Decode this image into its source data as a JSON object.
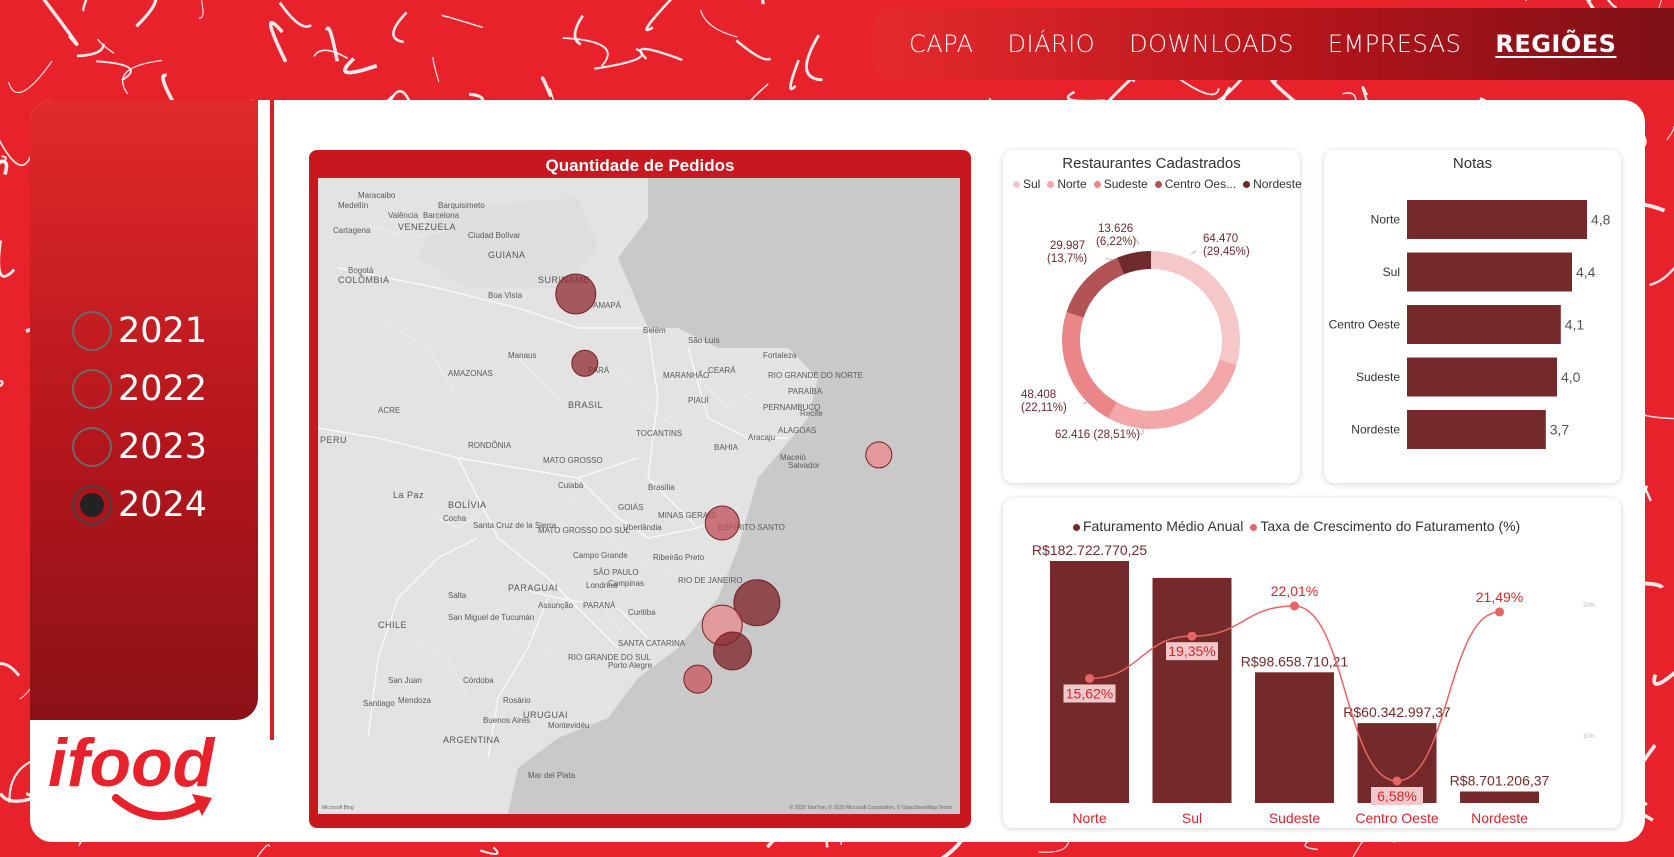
{
  "nav": {
    "items": [
      {
        "label": "CAPA",
        "active": false
      },
      {
        "label": "DIÁRIO",
        "active": false
      },
      {
        "label": "DOWNLOADS",
        "active": false
      },
      {
        "label": "EMPRESAS",
        "active": false
      },
      {
        "label": "REGIÕES",
        "active": true
      }
    ]
  },
  "years": [
    {
      "label": "2021",
      "checked": false
    },
    {
      "label": "2022",
      "checked": false
    },
    {
      "label": "2023",
      "checked": false
    },
    {
      "label": "2024",
      "checked": true
    }
  ],
  "logo": {
    "text": "ifood",
    "icon": "ifood-logo-icon"
  },
  "map": {
    "title": "Quantidade de Pedidos",
    "labels": [
      "VENEZUELA",
      "COLÔMBIA",
      "GUIANA",
      "SURINAME",
      "AMAPÁ",
      "Belém",
      "São Luís",
      "Fortaleza",
      "AMAZONAS",
      "PARÁ",
      "MARANHÃO",
      "CEARÁ",
      "RIO GRANDE DO NORTE",
      "PARAÍBA",
      "PERNAMBUCO",
      "Recife",
      "ALAGOAS",
      "PIAUÍ",
      "BRASIL",
      "ACRE",
      "RONDÔNIA",
      "TOCANTINS",
      "BAHIA",
      "Salvador",
      "MATO GROSSO",
      "Cuiabá",
      "Brasília",
      "GOIÁS",
      "MINAS GERAIS",
      "ESPÍRITO SANTO",
      "BOLÍVIA",
      "La Paz",
      "Cocha",
      "Santa Cruz de la Sierra",
      "MATO GROSSO DO SUL",
      "Campo Grande",
      "Uberlândia",
      "Ribeirão Preto",
      "SÃO PAULO",
      "RIO DE JANEIRO",
      "Campinas",
      "PARAGUAI",
      "Assunção",
      "PARANÁ",
      "Londrina",
      "Curitiba",
      "SANTA CATARINA",
      "RIO GRANDE DO SUL",
      "Porto Alegre",
      "Salta",
      "San Miguel de Tucumán",
      "CHILE",
      "Córdoba",
      "Rosário",
      "San Juan",
      "Mendoza",
      "Santiago",
      "URUGUAI",
      "Buenos Aires",
      "Montevidéu",
      "ARGENTINA",
      "PERU",
      "Manaus",
      "Boa Vista",
      "Bogotá",
      "Medellín",
      "Cartagena",
      "Barquisimeto",
      "Maracaibo",
      "Valência",
      "Barcelona",
      "Ciudad Bolívar",
      "Mar del Plata",
      "Aracaju",
      "Maceió"
    ],
    "footer": "© 2025 TomTom, © 2025 Microsoft Corporation, © OpenStreetMap  Terms",
    "bing": "Microsoft Bing"
  },
  "restaurantes": {
    "title": "Restaurantes Cadastrados",
    "legend": [
      "Sul",
      "Norte",
      "Sudeste",
      "Centro Oes...",
      "Nordeste"
    ],
    "labels": [
      {
        "line1": "64.470",
        "line2": "(29,45%)"
      },
      {
        "line1": "62.416 (28,51%)",
        "line2": ""
      },
      {
        "line1": "48.408",
        "line2": "(22,11%)"
      },
      {
        "line1": "29.987",
        "line2": "(13,7%)"
      },
      {
        "line1": "13.626",
        "line2": "(6,22%)"
      }
    ]
  },
  "notas": {
    "title": "Notas",
    "labels": [
      "Norte",
      "Sul",
      "Centro Oeste",
      "Sudeste",
      "Nordeste"
    ],
    "value_labels": [
      "4,8",
      "4,4",
      "4,1",
      "4,0",
      "3,7"
    ]
  },
  "faturamento": {
    "legend": [
      "Faturamento Médio Anual",
      "Taxa de Crescimento do Faturamento (%)"
    ],
    "bar_labels": [
      "R$182.722.770,25",
      "",
      "R$98.658.710,21",
      "R$60.342.997,37",
      "R$8.701.206,37"
    ],
    "rate_labels": [
      "15,62%",
      "19,35%",
      "22,01%",
      "6,58%",
      "21,49%"
    ],
    "categories": [
      "Norte",
      "Sul",
      "Sudeste",
      "Centro Oeste",
      "Nordeste"
    ],
    "axis_ticks": [
      "20%",
      "10%"
    ]
  },
  "colors": {
    "brand": "#e8222b",
    "dark_bar": "#742a2a",
    "line": "#e86465",
    "text_red": "#d6262d"
  },
  "chart_data": [
    {
      "type": "pie",
      "title": "Restaurantes Cadastrados",
      "categories": [
        "Sul",
        "Norte",
        "Sudeste",
        "Centro Oeste",
        "Nordeste"
      ],
      "values": [
        64470,
        62416,
        48408,
        29987,
        13626
      ],
      "percents": [
        29.45,
        28.51,
        22.11,
        13.7,
        6.22
      ],
      "colors": [
        "#f6c7c8",
        "#f3a7a8",
        "#ea8688",
        "#b25456",
        "#6e2a2c"
      ],
      "legend": "top"
    },
    {
      "type": "bar",
      "title": "Notas",
      "orientation": "horizontal",
      "categories": [
        "Norte",
        "Sul",
        "Centro Oeste",
        "Sudeste",
        "Nordeste"
      ],
      "values": [
        4.8,
        4.4,
        4.1,
        4.0,
        3.7
      ],
      "xlim": [
        0,
        5
      ]
    },
    {
      "type": "bar",
      "title": "",
      "categories": [
        "Norte",
        "Sul",
        "Sudeste",
        "Centro Oeste",
        "Nordeste"
      ],
      "series": [
        {
          "name": "Faturamento Médio Anual",
          "type": "bar",
          "values": [
            182722770.25,
            170000000,
            98658710.21,
            60342997.37,
            8701206.37
          ]
        },
        {
          "name": "Taxa de Crescimento do Faturamento (%)",
          "type": "line",
          "values": [
            15.62,
            19.35,
            22.01,
            6.58,
            21.49
          ]
        }
      ],
      "ylim": [
        0,
        185000000
      ],
      "y2lim": [
        5,
        25
      ],
      "legend": "top"
    }
  ],
  "map_points": [
    {
      "name": "Boa Vista",
      "lon": -60.7,
      "lat": 2.8,
      "size": 1.0,
      "color": "#8e2b30"
    },
    {
      "name": "Manaus",
      "lon": -60.0,
      "lat": -3.1,
      "size": 0.65,
      "color": "#8e2b30"
    },
    {
      "name": "Aracaju",
      "lon": -37.1,
      "lat": -10.9,
      "size": 0.65,
      "color": "#e98a8e"
    },
    {
      "name": "Goiânia",
      "lon": -49.3,
      "lat": -16.7,
      "size": 0.85,
      "color": "#bf4d55"
    },
    {
      "name": "São Paulo",
      "lon": -46.6,
      "lat": -23.5,
      "size": 1.15,
      "color": "#7a1f24"
    },
    {
      "name": "Curitiba",
      "lon": -49.3,
      "lat": -25.4,
      "size": 1.0,
      "color": "#e98a8e"
    },
    {
      "name": "Florianópolis",
      "lon": -48.5,
      "lat": -27.6,
      "size": 0.95,
      "color": "#7a1f24"
    },
    {
      "name": "Porto Alegre",
      "lon": -51.2,
      "lat": -30.0,
      "size": 0.7,
      "color": "#c8545b"
    }
  ]
}
